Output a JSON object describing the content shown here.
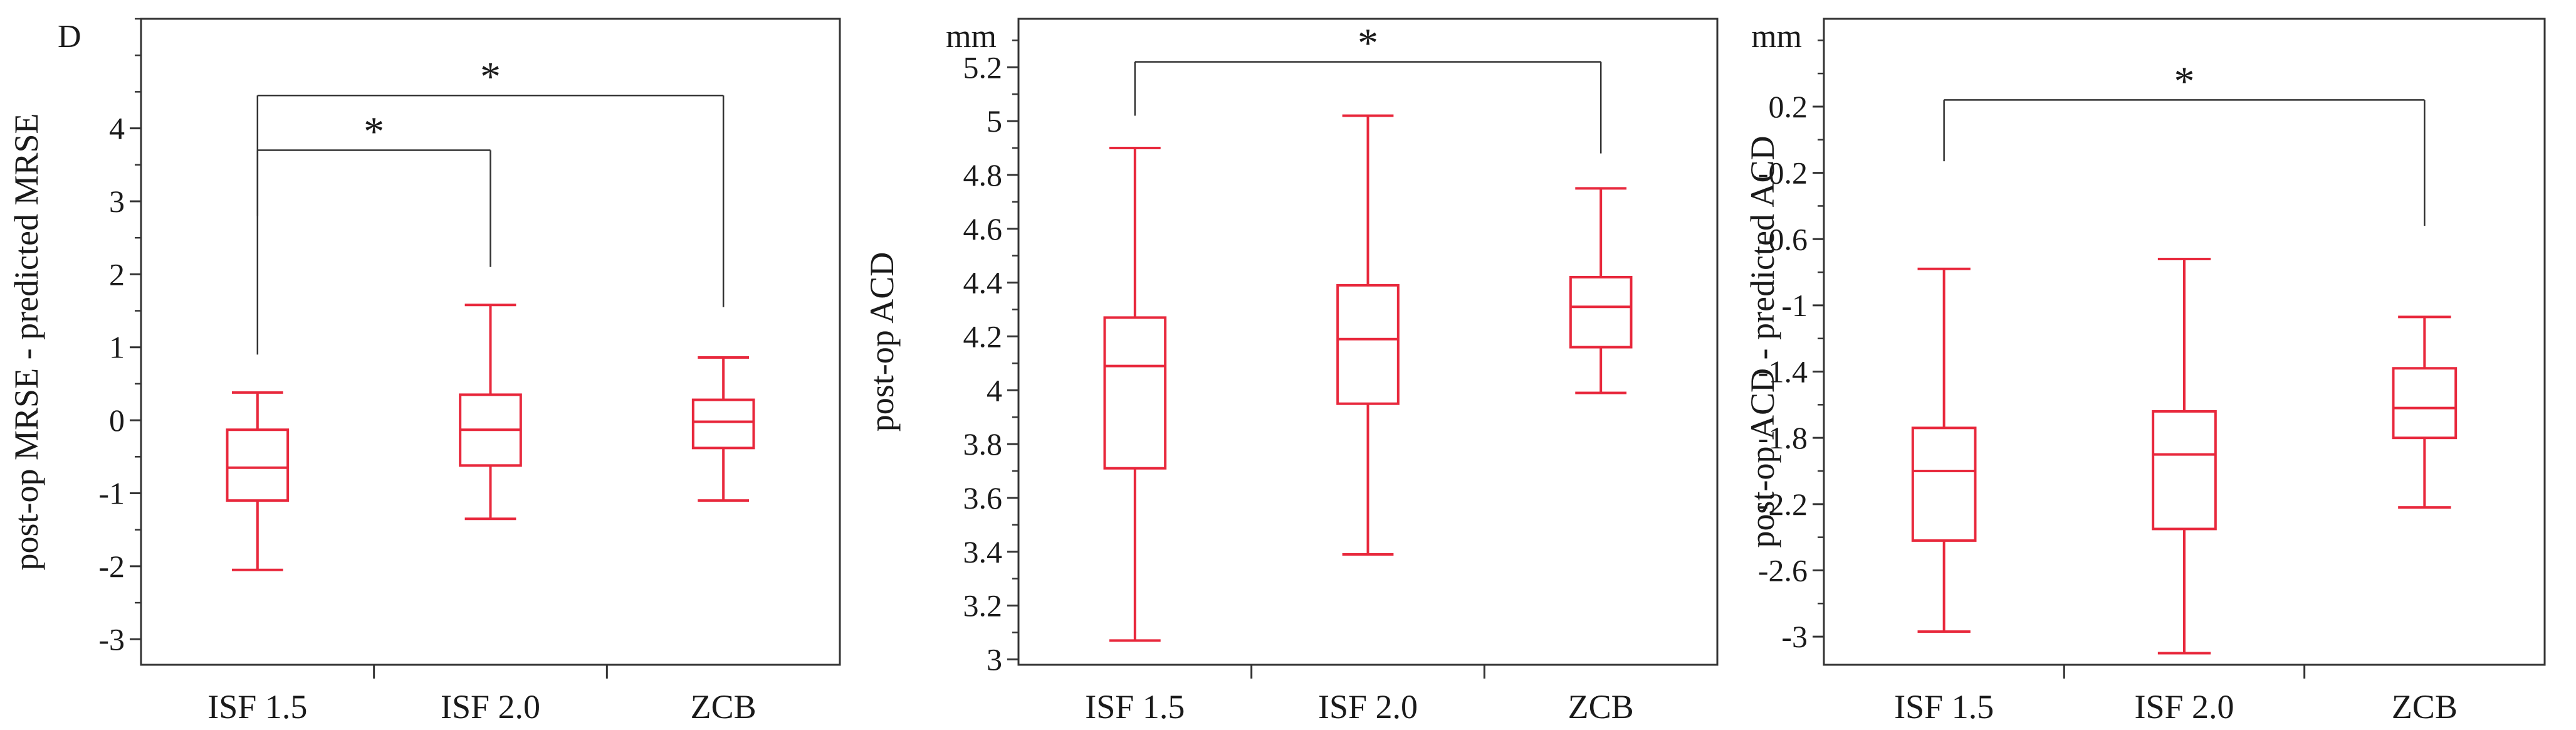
{
  "colors": {
    "box": "#e8283c",
    "axis": "#333333",
    "bracket": "#333333"
  },
  "chart_data": [
    {
      "type": "box",
      "panel_letter": "D",
      "unit": "",
      "ylabel": "post-op MRSE - predicted MRSE",
      "categories": [
        "ISF 1.5",
        "ISF 2.0",
        "ZCB"
      ],
      "ylim": [
        -3.35,
        5.5
      ],
      "yticks": [
        -3,
        -2,
        -1,
        0,
        1,
        2,
        3,
        4
      ],
      "ytick_labels": [
        "-3",
        "-2",
        "-1",
        "0",
        "1",
        "2",
        "3",
        "4"
      ],
      "minor_ticks": true,
      "boxes": [
        {
          "category": "ISF 1.5",
          "min": -2.05,
          "q1": -1.1,
          "median": -0.65,
          "q3": -0.13,
          "max": 0.38
        },
        {
          "category": "ISF 2.0",
          "min": -1.35,
          "q1": -0.62,
          "median": -0.13,
          "q3": 0.35,
          "max": 1.58
        },
        {
          "category": "ZCB",
          "min": -1.1,
          "q1": -0.38,
          "median": -0.02,
          "q3": 0.28,
          "max": 0.86
        }
      ],
      "significance": [
        {
          "from": "ISF 1.5",
          "to": "ISF 2.0",
          "label": "*",
          "y": 3.7,
          "left_y": 2.8,
          "right_y": 2.1
        },
        {
          "from": "ISF 1.5",
          "to": "ZCB",
          "label": "*",
          "y": 4.45,
          "left_y": 0.9,
          "right_y": 1.55
        }
      ]
    },
    {
      "type": "box",
      "panel_letter": "",
      "unit": "mm",
      "ylabel": "post-op ACD",
      "categories": [
        "ISF 1.5",
        "ISF 2.0",
        "ZCB"
      ],
      "ylim": [
        2.98,
        5.38
      ],
      "yticks": [
        3,
        3.2,
        3.4,
        3.6,
        3.8,
        4,
        4.2,
        4.4,
        4.6,
        4.8,
        5,
        5.2
      ],
      "ytick_labels": [
        "3",
        "3.2",
        "3.4",
        "3.6",
        "3.8",
        "4",
        "4.2",
        "4.4",
        "4.6",
        "4.8",
        "5",
        "5.2"
      ],
      "minor_ticks": true,
      "boxes": [
        {
          "category": "ISF 1.5",
          "min": 3.07,
          "q1": 3.71,
          "median": 4.09,
          "q3": 4.27,
          "max": 4.9
        },
        {
          "category": "ISF 2.0",
          "min": 3.39,
          "q1": 3.95,
          "median": 4.19,
          "q3": 4.39,
          "max": 5.02
        },
        {
          "category": "ZCB",
          "min": 3.99,
          "q1": 4.16,
          "median": 4.31,
          "q3": 4.42,
          "max": 4.75
        }
      ],
      "significance": [
        {
          "from": "ISF 1.5",
          "to": "ZCB",
          "label": "*",
          "y": 5.22,
          "left_y": 5.02,
          "right_y": 4.88
        }
      ]
    },
    {
      "type": "box",
      "panel_letter": "",
      "unit": "mm",
      "ylabel": "post-op ACD - predicted ACD",
      "categories": [
        "ISF 1.5",
        "ISF 2.0",
        "ZCB"
      ],
      "ylim": [
        -3.17,
        0.73
      ],
      "yticks": [
        -3,
        -2.6,
        -2.2,
        -1.8,
        -1.4,
        -1,
        -0.6,
        -0.2,
        0.2
      ],
      "ytick_labels": [
        "-3",
        "-2.6",
        "-2.2",
        "-1.8",
        "-1.4",
        "-1",
        "-0.6",
        "-0.2",
        "0.2"
      ],
      "minor_ticks": true,
      "boxes": [
        {
          "category": "ISF 1.5",
          "min": -2.97,
          "q1": -2.42,
          "median": -2.0,
          "q3": -1.74,
          "max": -0.78
        },
        {
          "category": "ISF 2.0",
          "min": -3.1,
          "q1": -2.35,
          "median": -1.9,
          "q3": -1.64,
          "max": -0.72
        },
        {
          "category": "ZCB",
          "min": -2.22,
          "q1": -1.8,
          "median": -1.62,
          "q3": -1.38,
          "max": -1.07
        }
      ],
      "significance": [
        {
          "from": "ISF 1.5",
          "to": "ZCB",
          "label": "*",
          "y": 0.24,
          "left_y": -0.13,
          "right_y": -0.52
        }
      ]
    }
  ]
}
